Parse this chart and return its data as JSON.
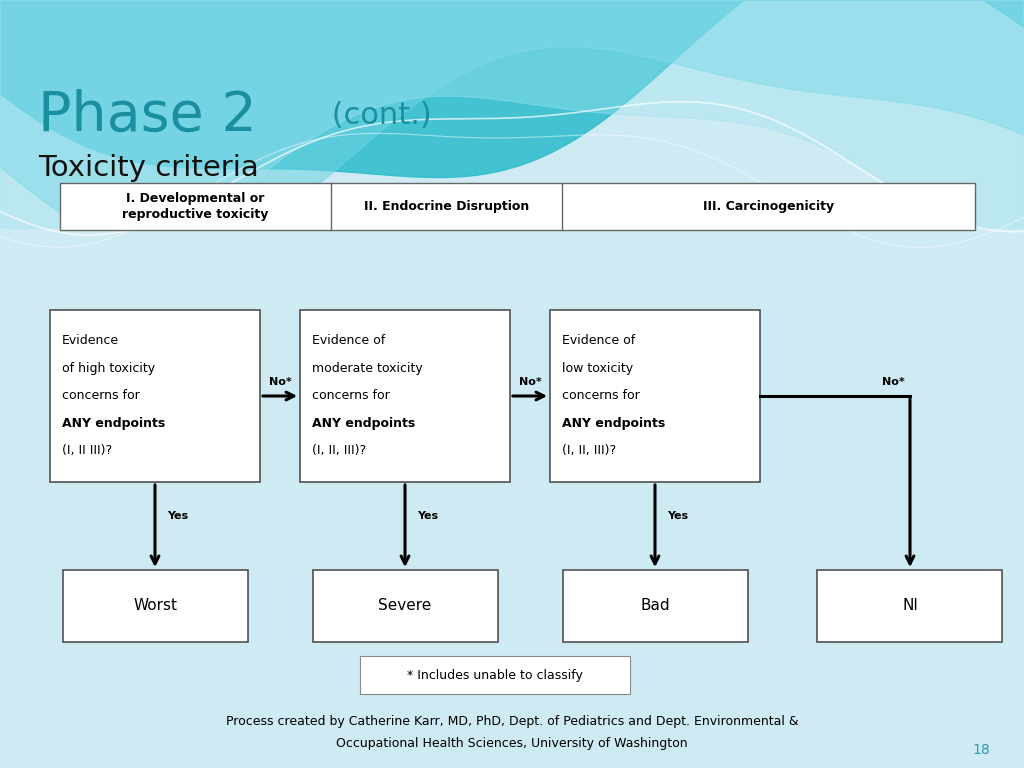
{
  "bg_color": "#ceeaf2",
  "title_large": "Phase 2",
  "title_large_color": "#1a8fa0",
  "title_cont": " (cont.)",
  "subtitle": "Toxicity criteria",
  "subtitle_color": "#111111",
  "wave_color1": "#2ab8cc",
  "wave_color2": "#80d8e8",
  "wave_color3": "#55c8dc",
  "header_labels": [
    "I. Developmental or\nreproductive toxicity",
    "II. Endocrine Disruption",
    "III. Carcinogenicity"
  ],
  "box_texts": [
    [
      "Evidence",
      "of high toxicity",
      "concerns for",
      "ANY endpoints",
      "(I, II III)?"
    ],
    [
      "Evidence of",
      "moderate toxicity",
      "concerns for",
      "ANY endpoints",
      "(I, II, III)?"
    ],
    [
      "Evidence of",
      "low toxicity",
      "concerns for",
      "ANY endpoints",
      "(I, II, III)?"
    ]
  ],
  "result_labels": [
    "Worst",
    "Severe",
    "Bad",
    "NI"
  ],
  "arrow_label": "No*",
  "yes_label": "Yes",
  "footnote": "* Includes unable to classify",
  "credit_line1": "Process created by Catherine Karr, MD, PhD, Dept. of Pediatrics and Dept. Environmental &",
  "credit_line2": "Occupational Health Sciences, University of Washington",
  "page_num": "18"
}
